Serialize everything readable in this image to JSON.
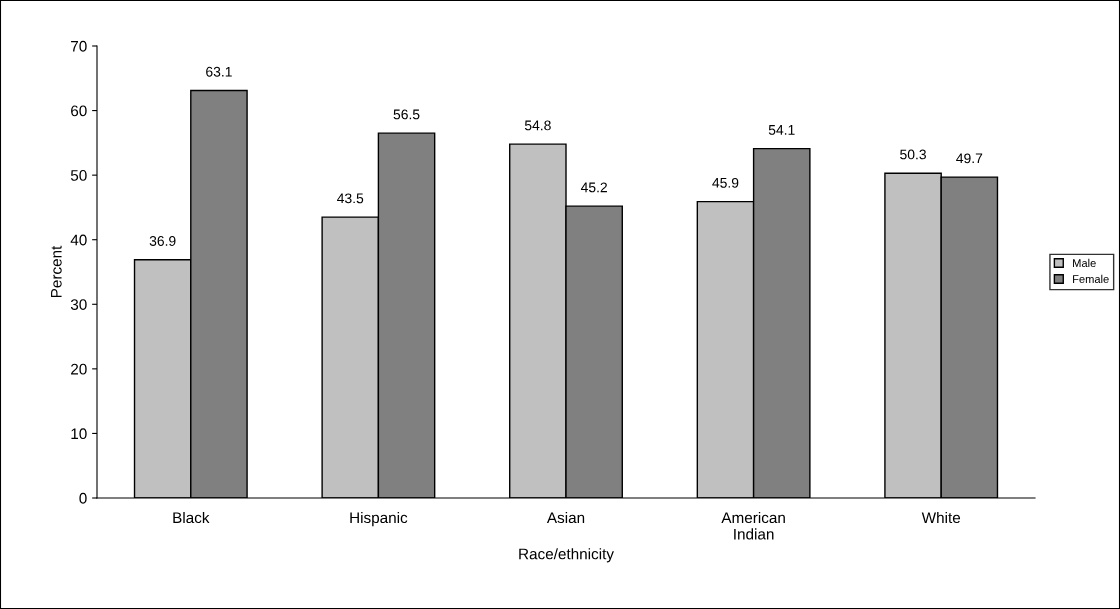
{
  "chart_data": {
    "type": "bar",
    "xlabel": "Race/ethnicity",
    "ylabel": "Percent",
    "categories": [
      "Black",
      "Hispanic",
      "Asian",
      "American\nIndian",
      "White"
    ],
    "series": [
      {
        "name": "Male",
        "color": "#c0c0c0",
        "values": [
          36.9,
          43.5,
          54.8,
          45.9,
          50.3
        ]
      },
      {
        "name": "Female",
        "color": "#808080",
        "values": [
          63.1,
          56.5,
          45.2,
          54.1,
          49.7
        ]
      }
    ],
    "ylim": [
      0,
      70
    ],
    "yticks": [
      0,
      10,
      20,
      30,
      40,
      50,
      60,
      70
    ],
    "data_labels": true,
    "grid": false,
    "legend": "right"
  }
}
